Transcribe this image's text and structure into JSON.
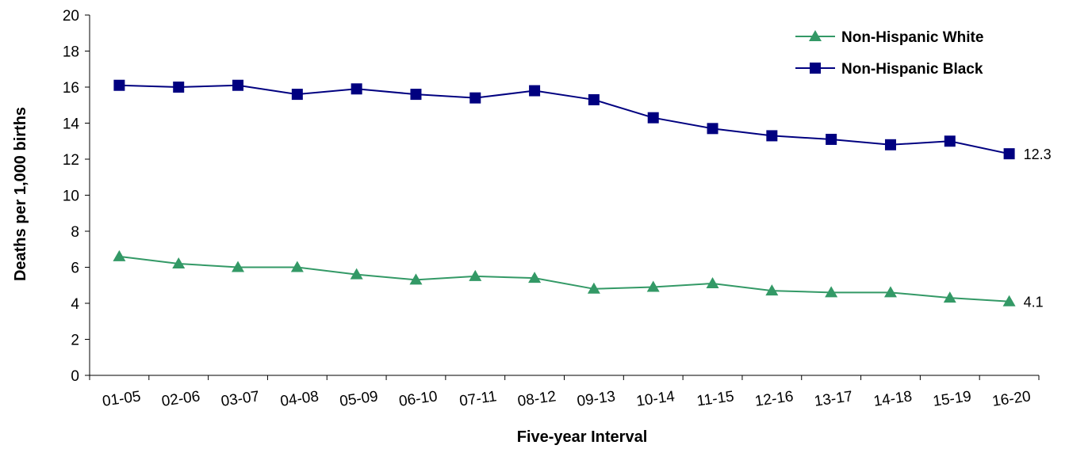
{
  "chart_data": {
    "type": "line",
    "title": "",
    "xlabel": "Five-year Interval",
    "ylabel": "Deaths per 1,000 births",
    "ylim": [
      0,
      20
    ],
    "yticks": [
      0,
      2,
      4,
      6,
      8,
      10,
      12,
      14,
      16,
      18,
      20
    ],
    "grid": false,
    "legend_position": "top-right",
    "categories": [
      "01-05",
      "02-06",
      "03-07",
      "04-08",
      "05-09",
      "06-10",
      "07-11",
      "08-12",
      "09-13",
      "10-14",
      "11-15",
      "12-16",
      "13-17",
      "14-18",
      "15-19",
      "16-20"
    ],
    "series": [
      {
        "name": "Non-Hispanic White",
        "color": "#339966",
        "marker": "triangle",
        "values": [
          6.6,
          6.2,
          6.0,
          6.0,
          5.6,
          5.3,
          5.5,
          5.4,
          4.8,
          4.9,
          5.1,
          4.7,
          4.6,
          4.6,
          4.3,
          4.1
        ],
        "end_label": "4.1"
      },
      {
        "name": "Non-Hispanic Black",
        "color": "#000080",
        "marker": "square",
        "values": [
          16.1,
          16.0,
          16.1,
          15.6,
          15.9,
          15.6,
          15.4,
          15.8,
          15.3,
          14.3,
          13.7,
          13.3,
          13.1,
          12.8,
          13.0,
          12.3
        ],
        "end_label": "12.3"
      }
    ]
  }
}
